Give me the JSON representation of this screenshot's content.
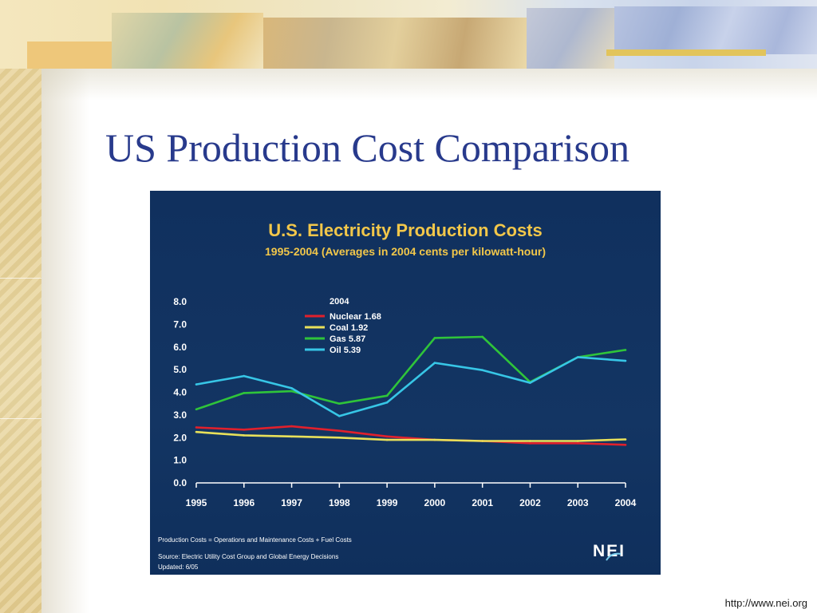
{
  "slide": {
    "title": "US Production Cost Comparison",
    "footer_url": "http://www.nei.org"
  },
  "chart_data": {
    "type": "line",
    "title": "U.S. Electricity Production Costs",
    "subtitle": "1995-2004 (Averages in 2004 cents per kilowatt-hour)",
    "x": [
      "1995",
      "1996",
      "1997",
      "1998",
      "1999",
      "2000",
      "2001",
      "2002",
      "2003",
      "2004"
    ],
    "ylim": [
      0,
      8
    ],
    "yticks": [
      "0.0",
      "1.0",
      "2.0",
      "3.0",
      "4.0",
      "5.0",
      "6.0",
      "7.0",
      "8.0"
    ],
    "grid": false,
    "legend_title": "2004",
    "legend_position": "top-left",
    "series": [
      {
        "name": "Nuclear 1.68",
        "color": "#e0202c",
        "values": [
          2.45,
          2.35,
          2.5,
          2.3,
          2.05,
          1.9,
          1.85,
          1.75,
          1.75,
          1.68
        ]
      },
      {
        "name": "Coal 1.92",
        "color": "#e8e05a",
        "values": [
          2.25,
          2.1,
          2.05,
          2.0,
          1.9,
          1.9,
          1.85,
          1.85,
          1.85,
          1.92
        ]
      },
      {
        "name": "Gas 5.87",
        "color": "#2fc43a",
        "values": [
          3.25,
          3.97,
          4.05,
          3.5,
          3.85,
          6.4,
          6.45,
          4.45,
          5.55,
          5.87
        ]
      },
      {
        "name": "Oil 5.39",
        "color": "#37c6e6",
        "values": [
          4.35,
          4.72,
          4.18,
          2.95,
          3.55,
          5.3,
          4.98,
          4.42,
          5.55,
          5.39
        ]
      }
    ],
    "notes": [
      "Production Costs = Operations and Maintenance Costs + Fuel Costs",
      "Source: Electric Utility Cost Group and Global Energy Decisions",
      "Updated: 6/05"
    ],
    "logo_text": "NEI"
  }
}
